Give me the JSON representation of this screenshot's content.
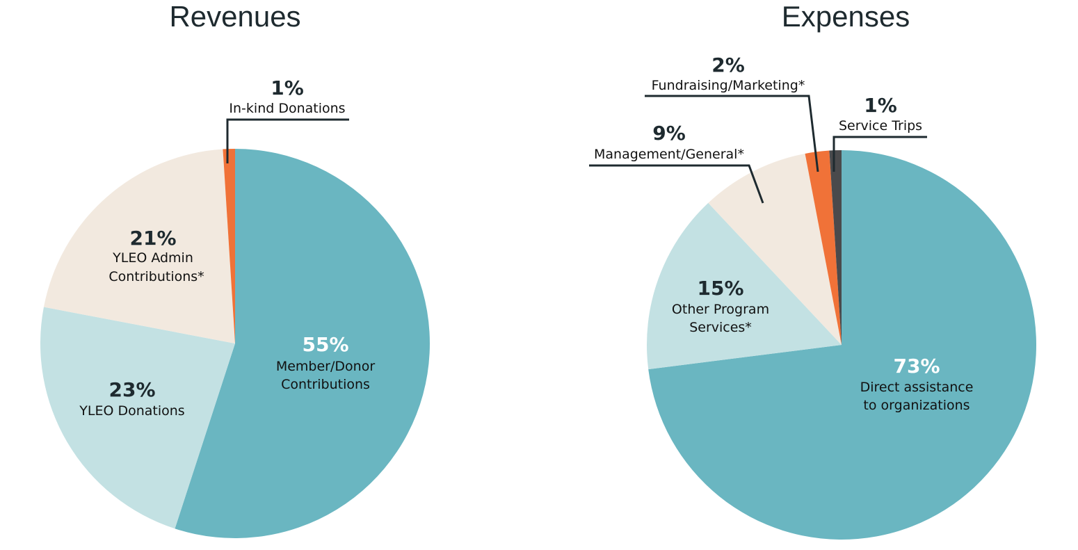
{
  "chart_data": [
    {
      "type": "pie",
      "title": "Revenues",
      "slices": [
        {
          "label": "Member/Donor Contributions",
          "pct_label": "55%",
          "value": 55,
          "color": "#6ab6c1",
          "pct_light": true
        },
        {
          "label": "YLEO Donations",
          "pct_label": "23%",
          "value": 23,
          "color": "#c3e1e3"
        },
        {
          "label": "YLEO Admin Contributions*",
          "pct_label": "21%",
          "value": 21,
          "color": "#f2e9df"
        },
        {
          "label": "In-kind Donations",
          "pct_label": "1%",
          "value": 1,
          "color": "#f07238"
        }
      ]
    },
    {
      "type": "pie",
      "title": "Expenses",
      "slices": [
        {
          "label": "Direct assistance to organizations",
          "pct_label": "73%",
          "value": 73,
          "color": "#6ab6c1",
          "pct_light": true
        },
        {
          "label": "Other Program Services*",
          "pct_label": "15%",
          "value": 15,
          "color": "#c3e1e3"
        },
        {
          "label": "Management/General*",
          "pct_label": "9%",
          "value": 9,
          "color": "#f2e9df"
        },
        {
          "label": "Fundraising/Marketing*",
          "pct_label": "2%",
          "value": 2,
          "color": "#f07238"
        },
        {
          "label": "Service Trips",
          "pct_label": "1%",
          "value": 1,
          "color": "#4a4a4c"
        }
      ]
    }
  ]
}
